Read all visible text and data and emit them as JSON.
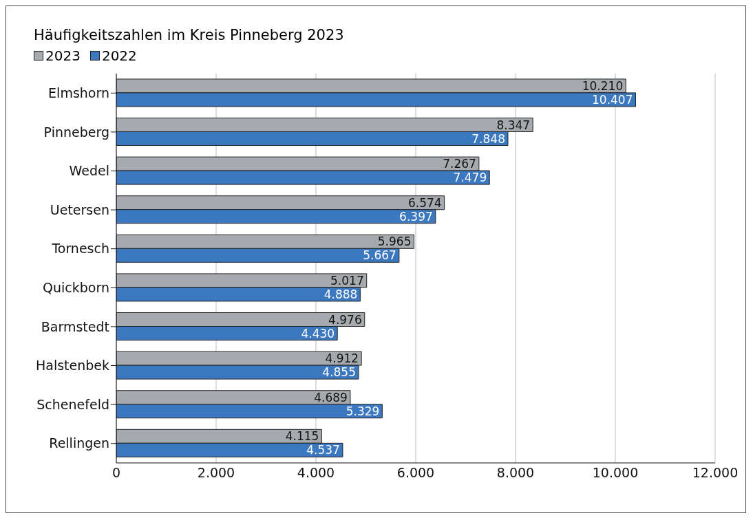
{
  "chart_data": {
    "type": "bar",
    "orientation": "horizontal",
    "title": "Häufigkeitszahlen im Kreis Pinneberg 2023",
    "categories": [
      "Elmshorn",
      "Pinneberg",
      "Wedel",
      "Uetersen",
      "Tornesch",
      "Quickborn",
      "Barmstedt",
      "Halstenbek",
      "Schenefeld",
      "Rellingen"
    ],
    "series": [
      {
        "name": "2023",
        "color": "#a6a9ae",
        "values": [
          10210,
          8347,
          7267,
          6574,
          5965,
          5017,
          4976,
          4912,
          4689,
          4115
        ],
        "value_labels": [
          "10.210",
          "8.347",
          "7.267",
          "6.574",
          "5.965",
          "5.017",
          "4.976",
          "4.912",
          "4.689",
          "4.115"
        ]
      },
      {
        "name": "2022",
        "color": "#3b78c0",
        "values": [
          10407,
          7848,
          7479,
          6397,
          5667,
          4888,
          4430,
          4855,
          5329,
          4537
        ],
        "value_labels": [
          "10.407",
          "7.848",
          "7.479",
          "6.397",
          "5.667",
          "4.888",
          "4.430",
          "4.855",
          "5.329",
          "4.537"
        ]
      }
    ],
    "xlim": [
      0,
      12000
    ],
    "xticks": [
      {
        "value": 0,
        "label": "0"
      },
      {
        "value": 2000,
        "label": "2.000"
      },
      {
        "value": 4000,
        "label": "4.000"
      },
      {
        "value": 6000,
        "label": "6.000"
      },
      {
        "value": 8000,
        "label": "8.000"
      },
      {
        "value": 10000,
        "label": "10.000"
      },
      {
        "value": 12000,
        "label": "12.000"
      }
    ],
    "grid": "x",
    "legend": "top left"
  }
}
